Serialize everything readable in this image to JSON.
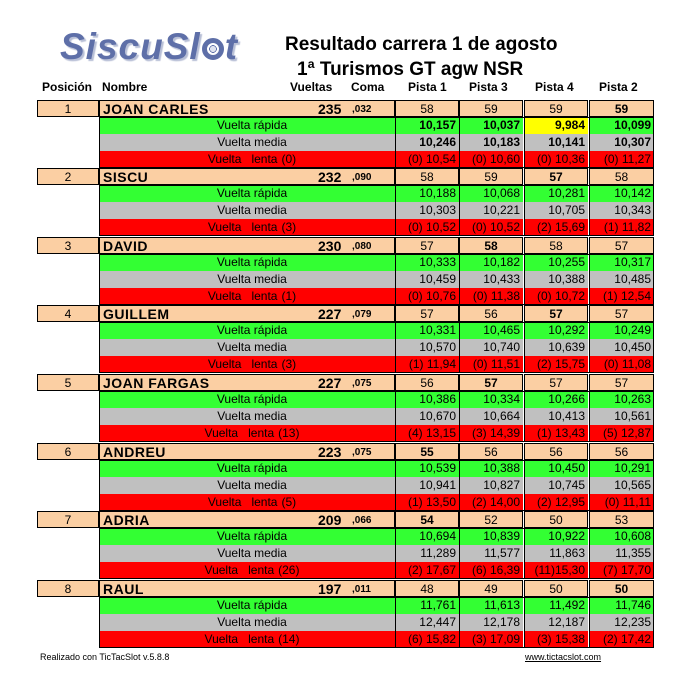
{
  "logo": {
    "before": "SiscuSl",
    "after": "t"
  },
  "title": {
    "line1": "Resultado carrera 1 de agosto",
    "line2": "1ª Turismos GT agw NSR"
  },
  "headers": {
    "position": "Posición",
    "name": "Nombre",
    "laps": "Vueltas",
    "decimal": "Coma",
    "tracks": [
      "Pista 1",
      "Pista 3",
      "Pista 4",
      "Pista 2"
    ]
  },
  "labels": {
    "fastest": "Vuelta rápida",
    "average": "Vuelta media",
    "slow_prefix": "Vuelta   lenta"
  },
  "colors": {
    "header_row": "#fbcfa3",
    "fastest_row": "#33ff33",
    "average_row": "#c0c0c0",
    "slow_row": "#ff0000",
    "best_lap_highlight": "#ffff00"
  },
  "drivers": [
    {
      "pos": "1",
      "name": "JOAN CARLES",
      "laps": "235",
      "decimal": ",032",
      "track_laps": [
        "58",
        "59",
        "59",
        "59"
      ],
      "bold_laps": [
        false,
        false,
        false,
        true
      ],
      "fastest": [
        "10,157",
        "10,037",
        "9,984",
        "10,099"
      ],
      "fastest_bold": true,
      "fastest_highlight": [
        false,
        false,
        true,
        false
      ],
      "average": [
        "10,246",
        "10,183",
        "10,141",
        "10,307"
      ],
      "average_bold": true,
      "slow_count": "(0)",
      "slow": [
        "(0) 10,54",
        "(0) 10,60",
        "(0) 10,36",
        "(0) 11,27"
      ]
    },
    {
      "pos": "2",
      "name": "SISCU",
      "laps": "232",
      "decimal": ",090",
      "track_laps": [
        "58",
        "59",
        "57",
        "58"
      ],
      "bold_laps": [
        false,
        false,
        true,
        false
      ],
      "fastest": [
        "10,188",
        "10,068",
        "10,281",
        "10,142"
      ],
      "fastest_bold": false,
      "fastest_highlight": [
        false,
        false,
        false,
        false
      ],
      "average": [
        "10,303",
        "10,221",
        "10,705",
        "10,343"
      ],
      "average_bold": false,
      "slow_count": "(3)",
      "slow": [
        "(0) 10,52",
        "(0) 10,52",
        "(2) 15,69",
        "(1) 11,82"
      ]
    },
    {
      "pos": "3",
      "name": "DAVID",
      "laps": "230",
      "decimal": ",080",
      "track_laps": [
        "57",
        "58",
        "58",
        "57"
      ],
      "bold_laps": [
        false,
        true,
        false,
        false
      ],
      "fastest": [
        "10,333",
        "10,182",
        "10,255",
        "10,317"
      ],
      "fastest_bold": false,
      "fastest_highlight": [
        false,
        false,
        false,
        false
      ],
      "average": [
        "10,459",
        "10,433",
        "10,388",
        "10,485"
      ],
      "average_bold": false,
      "slow_count": "(1)",
      "slow": [
        "(0) 10,76",
        "(0) 11,38",
        "(0) 10,72",
        "(1) 12,54"
      ]
    },
    {
      "pos": "4",
      "name": "GUILLEM",
      "laps": "227",
      "decimal": ",079",
      "track_laps": [
        "57",
        "56",
        "57",
        "57"
      ],
      "bold_laps": [
        false,
        false,
        true,
        false
      ],
      "fastest": [
        "10,331",
        "10,465",
        "10,292",
        "10,249"
      ],
      "fastest_bold": false,
      "fastest_highlight": [
        false,
        false,
        false,
        false
      ],
      "average": [
        "10,570",
        "10,740",
        "10,639",
        "10,450"
      ],
      "average_bold": false,
      "slow_count": "(3)",
      "slow": [
        "(1) 11,94",
        "(0) 11,51",
        "(2) 15,75",
        "(0) 11,08"
      ]
    },
    {
      "pos": "5",
      "name": "JOAN FARGAS",
      "laps": "227",
      "decimal": ",075",
      "track_laps": [
        "56",
        "57",
        "57",
        "57"
      ],
      "bold_laps": [
        false,
        true,
        false,
        false
      ],
      "fastest": [
        "10,386",
        "10,334",
        "10,266",
        "10,263"
      ],
      "fastest_bold": false,
      "fastest_highlight": [
        false,
        false,
        false,
        false
      ],
      "average": [
        "10,670",
        "10,664",
        "10,413",
        "10,561"
      ],
      "average_bold": false,
      "slow_count": "(13)",
      "slow": [
        "(4) 13,15",
        "(3) 14,39",
        "(1) 13,43",
        "(5) 12,87"
      ]
    },
    {
      "pos": "6",
      "name": "ANDREU",
      "laps": "223",
      "decimal": ",075",
      "track_laps": [
        "55",
        "56",
        "56",
        "56"
      ],
      "bold_laps": [
        true,
        false,
        false,
        false
      ],
      "fastest": [
        "10,539",
        "10,388",
        "10,450",
        "10,291"
      ],
      "fastest_bold": false,
      "fastest_highlight": [
        false,
        false,
        false,
        false
      ],
      "average": [
        "10,941",
        "10,827",
        "10,745",
        "10,565"
      ],
      "average_bold": false,
      "slow_count": "(5)",
      "slow": [
        "(1) 13,50",
        "(2) 14,00",
        "(2) 12,95",
        "(0) 11,11"
      ]
    },
    {
      "pos": "7",
      "name": "ADRIA",
      "laps": "209",
      "decimal": ",066",
      "track_laps": [
        "54",
        "52",
        "50",
        "53"
      ],
      "bold_laps": [
        true,
        false,
        false,
        false
      ],
      "fastest": [
        "10,694",
        "10,839",
        "10,922",
        "10,608"
      ],
      "fastest_bold": false,
      "fastest_highlight": [
        false,
        false,
        false,
        false
      ],
      "average": [
        "11,289",
        "11,577",
        "11,863",
        "11,355"
      ],
      "average_bold": false,
      "slow_count": "(26)",
      "slow": [
        "(2) 17,67",
        "(6) 16,39",
        "(11)15,30",
        "(7) 17,70"
      ]
    },
    {
      "pos": "8",
      "name": "RAUL",
      "laps": "197",
      "decimal": ",011",
      "track_laps": [
        "48",
        "49",
        "50",
        "50"
      ],
      "bold_laps": [
        false,
        false,
        false,
        true
      ],
      "fastest": [
        "11,761",
        "11,613",
        "11,492",
        "11,746"
      ],
      "fastest_bold": false,
      "fastest_highlight": [
        false,
        false,
        false,
        false
      ],
      "average": [
        "12,447",
        "12,178",
        "12,187",
        "12,235"
      ],
      "average_bold": false,
      "slow_count": "(14)",
      "slow": [
        "(6) 15,82",
        "(3) 17,09",
        "(3) 15,38",
        "(2) 17,42"
      ]
    }
  ],
  "footer": {
    "left": "Realizado con TicTacSlot v.5.8.8",
    "right": "www.tictacslot.com"
  }
}
